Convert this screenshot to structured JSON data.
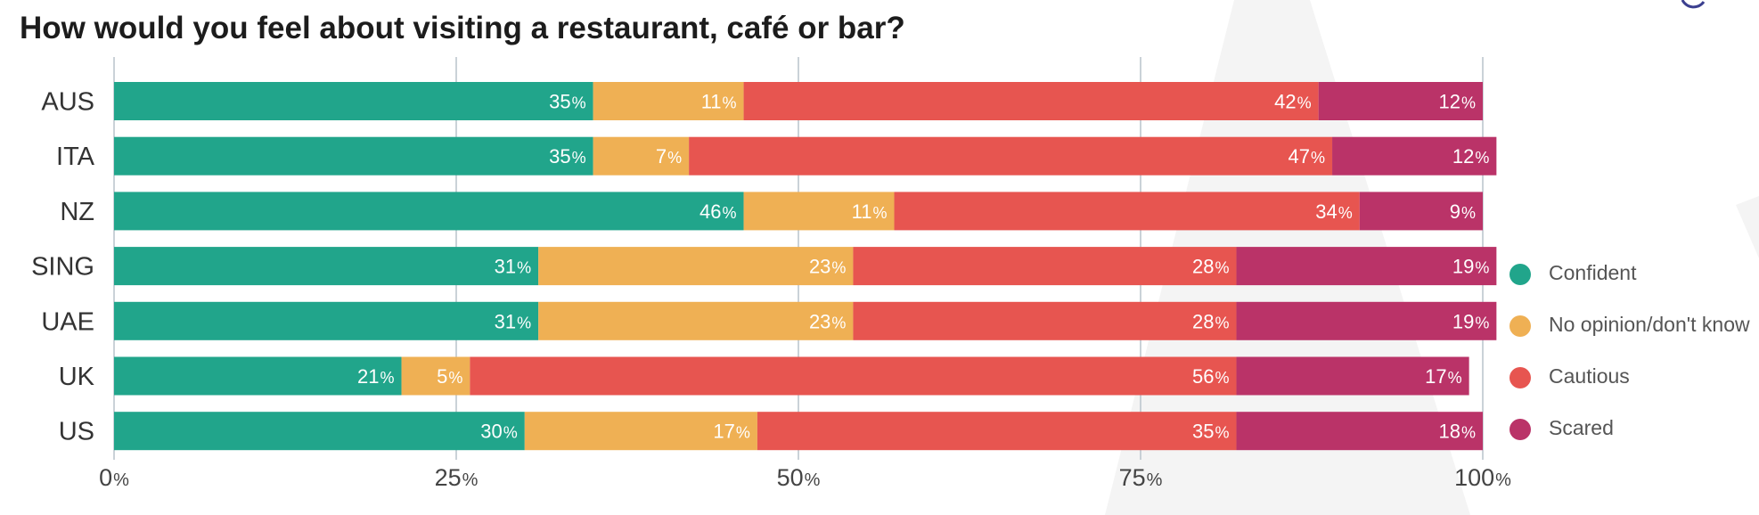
{
  "chart_data": {
    "type": "bar",
    "orientation": "horizontal",
    "stacked": true,
    "title": "How would you feel about visiting a restaurant, café or bar?",
    "categories": [
      "AUS",
      "ITA",
      "NZ",
      "SING",
      "UAE",
      "UK",
      "US"
    ],
    "series": [
      {
        "name": "Confident",
        "color": "#21a58b",
        "values": [
          35,
          35,
          46,
          31,
          31,
          21,
          30
        ]
      },
      {
        "name": "No opinion/don't know",
        "color": "#efb054",
        "values": [
          11,
          7,
          11,
          23,
          23,
          5,
          17
        ]
      },
      {
        "name": "Cautious",
        "color": "#e75550",
        "values": [
          42,
          47,
          34,
          28,
          28,
          56,
          35
        ]
      },
      {
        "name": "Scared",
        "color": "#ba3368",
        "values": [
          12,
          12,
          9,
          19,
          19,
          17,
          18
        ]
      }
    ],
    "xlim": [
      0,
      100
    ],
    "xticks": [
      0,
      25,
      50,
      75,
      100
    ],
    "tick_suffix": "%",
    "value_suffix": "%",
    "grid": true,
    "legend_position": "right"
  }
}
